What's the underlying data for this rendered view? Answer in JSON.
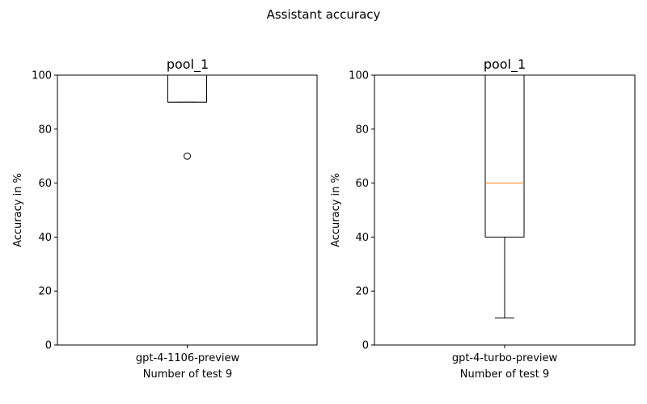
{
  "suptitle": "Assistant accuracy",
  "chart_data": [
    {
      "type": "box",
      "title": "pool_1",
      "xlabel": "Number of test 9",
      "ylabel": "Accuracy in %",
      "ylim": [
        0,
        100
      ],
      "yticks": [
        0,
        20,
        40,
        60,
        80,
        100
      ],
      "categories": [
        "gpt-4-1106-preview"
      ],
      "grid": false,
      "box": {
        "whisker_low": 90,
        "q1": 90,
        "median": 90,
        "q3": 100,
        "whisker_high": 100,
        "outliers": [
          70
        ]
      },
      "median_color": "#000000"
    },
    {
      "type": "box",
      "title": "pool_1",
      "xlabel": "Number of test 9",
      "ylabel": "Accuracy in %",
      "ylim": [
        0,
        100
      ],
      "yticks": [
        0,
        20,
        40,
        60,
        80,
        100
      ],
      "categories": [
        "gpt-4-turbo-preview"
      ],
      "grid": false,
      "box": {
        "whisker_low": 10,
        "q1": 40,
        "median": 60,
        "q3": 100,
        "whisker_high": 100,
        "outliers": []
      },
      "median_color": "#ff7f0e"
    }
  ]
}
